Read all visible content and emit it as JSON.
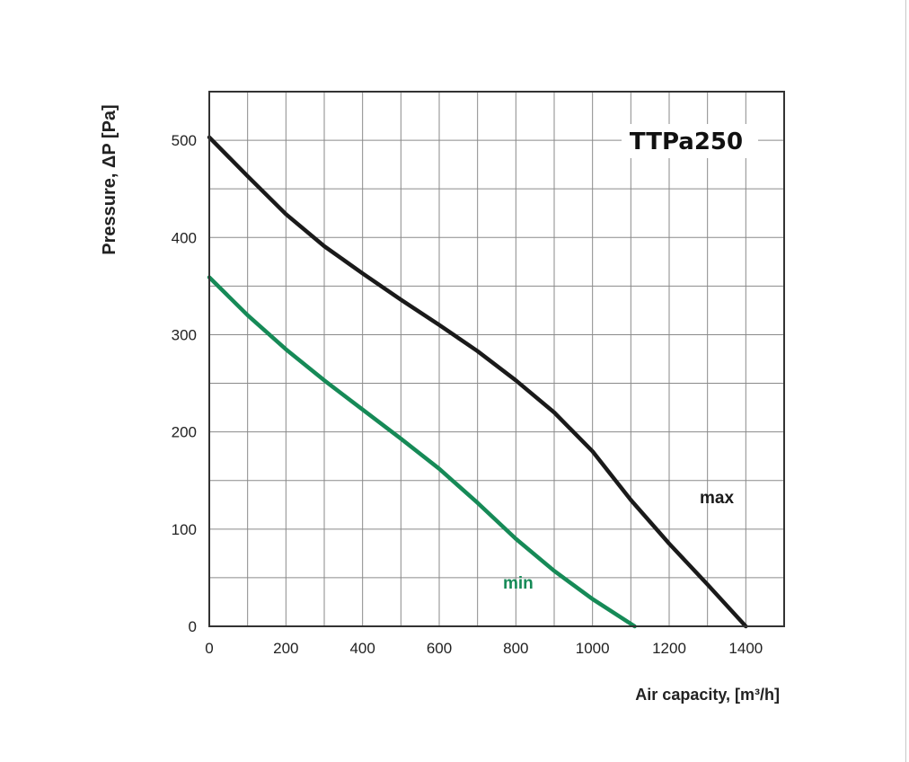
{
  "chart_data": {
    "type": "line",
    "title": "TTPa250",
    "xlabel": "Air capacity, [m³/h]",
    "ylabel": "Pressure, ΔP [Pa]",
    "xlim": [
      0,
      1500
    ],
    "ylim": [
      0,
      550
    ],
    "x_ticks": [
      0,
      200,
      400,
      600,
      800,
      1000,
      1200,
      1400
    ],
    "y_ticks": [
      0,
      100,
      200,
      300,
      400,
      500
    ],
    "x_grid_step": 100,
    "y_grid_step": 50,
    "grid": true,
    "series": [
      {
        "name": "max",
        "color": "#1a1a1a",
        "x": [
          0,
          100,
          200,
          300,
          400,
          500,
          600,
          700,
          800,
          900,
          1000,
          1100,
          1200,
          1300,
          1400
        ],
        "y": [
          503,
          463,
          424,
          391,
          363,
          336,
          310,
          283,
          253,
          220,
          180,
          130,
          85,
          43,
          0
        ]
      },
      {
        "name": "min",
        "color": "#168a57",
        "x": [
          0,
          100,
          200,
          300,
          400,
          500,
          600,
          700,
          800,
          900,
          1000,
          1110
        ],
        "y": [
          359,
          320,
          285,
          253,
          223,
          193,
          162,
          127,
          90,
          57,
          28,
          0
        ]
      }
    ]
  }
}
